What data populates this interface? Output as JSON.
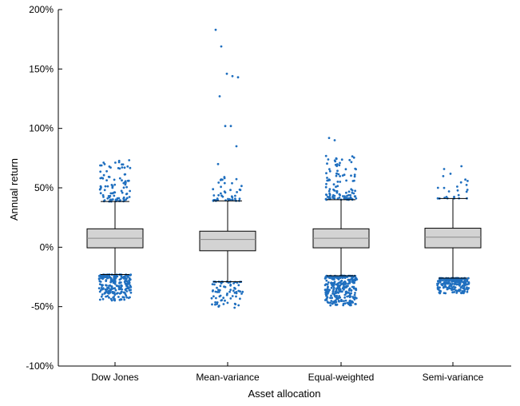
{
  "chart_data": {
    "type": "boxplot",
    "title": "",
    "xlabel": "Asset allocation",
    "ylabel": "Annual return",
    "ylim": [
      -100,
      200
    ],
    "yticks": [
      {
        "value": 200,
        "label": "200%"
      },
      {
        "value": 150,
        "label": "150%"
      },
      {
        "value": 100,
        "label": "100%"
      },
      {
        "value": 50,
        "label": "50%"
      },
      {
        "value": 0,
        "label": "0%"
      },
      {
        "value": -50,
        "label": "-50%"
      },
      {
        "value": -100,
        "label": "-100%"
      }
    ],
    "categories": [
      "Dow Jones",
      "Mean-variance",
      "Equal-weighted",
      "Semi-variance"
    ],
    "boxes": [
      {
        "name": "Dow Jones",
        "median": 7.5,
        "q1": -0.5,
        "q3": 15.5,
        "whisker_low": -23,
        "whisker_high": 38.5,
        "outliers_high_range": [
          38.5,
          74
        ],
        "outliers_low_range": [
          -45,
          -23
        ],
        "n_high": 95,
        "n_low": 230,
        "extreme_high": []
      },
      {
        "name": "Mean-variance",
        "median": 6.5,
        "q1": -3,
        "q3": 13.5,
        "whisker_low": -29,
        "whisker_high": 39,
        "outliers_high_range": [
          39,
          60
        ],
        "outliers_low_range": [
          -52,
          -29
        ],
        "n_high": 45,
        "n_low": 75,
        "extreme_high": [
          183,
          169,
          146,
          144,
          143,
          127,
          102,
          102,
          85,
          70
        ]
      },
      {
        "name": "Equal-weighted",
        "median": 7.5,
        "q1": -0.5,
        "q3": 15.5,
        "whisker_low": -24,
        "whisker_high": 40,
        "outliers_high_range": [
          40,
          78
        ],
        "outliers_low_range": [
          -49,
          -24
        ],
        "n_high": 110,
        "n_low": 290,
        "extreme_high": [
          92,
          90
        ]
      },
      {
        "name": "Semi-variance",
        "median": 8.5,
        "q1": -0.5,
        "q3": 16,
        "whisker_low": -26,
        "whisker_high": 41,
        "outliers_high_range": [
          41,
          69
        ],
        "outliers_low_range": [
          -39,
          -26
        ],
        "n_high": 25,
        "n_low": 210,
        "extreme_high": []
      }
    ],
    "colors": {
      "box_fill": "#d3d3d3",
      "point": "#1f6fbf",
      "axis": "#000000"
    }
  }
}
